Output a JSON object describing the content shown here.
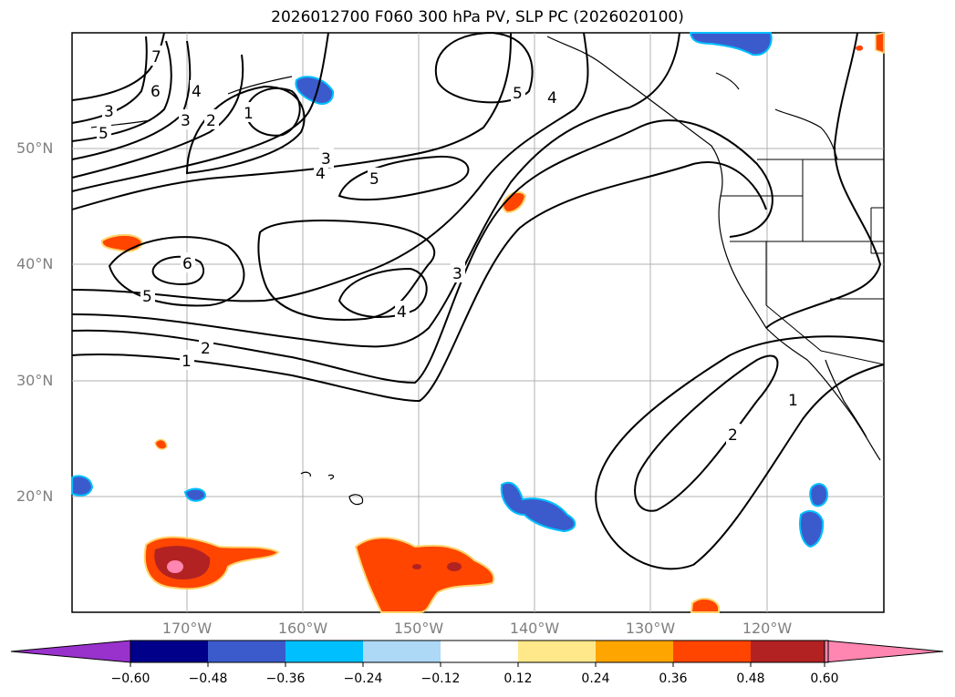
{
  "title": "2026012700 F060 300 hPa PV, SLP PC (2026020100)",
  "lat_labels": [
    "50°N",
    "40°N",
    "30°N",
    "20°N"
  ],
  "lon_labels": [
    "170°W",
    "160°W",
    "150°W",
    "140°W",
    "130°W",
    "120°W"
  ],
  "colorbar": {
    "ticks": [
      "−0.60",
      "−0.48",
      "−0.36",
      "−0.24",
      "−0.12",
      "0.12",
      "0.24",
      "0.36",
      "0.48",
      "0.60"
    ],
    "colors": {
      "under": "#9932cc",
      "c1": "#00008b",
      "c2": "#3b5bcc",
      "c3": "#00bfff",
      "c4": "#add8f6",
      "c5": "#ffffff",
      "c6": "#ffe88a",
      "c7": "#ffa500",
      "c8": "#ff4500",
      "c9": "#b22222",
      "over": "#ff86b0"
    }
  },
  "contour_labels": [
    "7",
    "6",
    "4",
    "3",
    "2",
    "1",
    "5",
    "4",
    "3",
    "5",
    "4",
    "5",
    "6",
    "5",
    "3",
    "4",
    "2",
    "1",
    "2",
    "1",
    "3"
  ],
  "colors": {
    "contour": "#000000",
    "gridline": "#b0b0b0",
    "coast": "#000000",
    "neg_blue": "#3b5bcc",
    "pos_orange": "#ff4500",
    "pos_red": "#b22222",
    "pos_pink": "#ff86b0"
  }
}
